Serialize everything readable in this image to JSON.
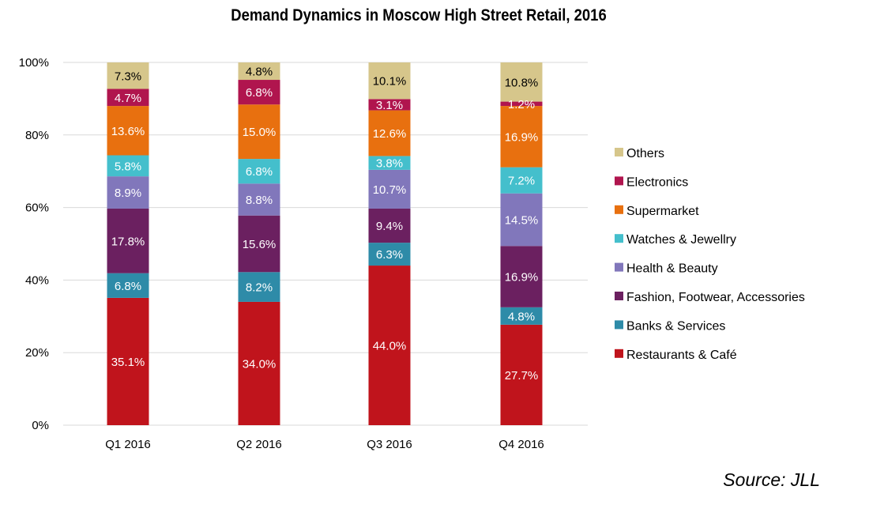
{
  "chart_data": {
    "type": "bar",
    "stacked": true,
    "title": "Demand Dynamics in Moscow High Street Retail, 2016",
    "source": "Source: JLL",
    "categories": [
      "Q1 2016",
      "Q2 2016",
      "Q3 2016",
      "Q4 2016"
    ],
    "y_ticks": [
      "0%",
      "20%",
      "40%",
      "60%",
      "80%",
      "100%"
    ],
    "ylim": [
      0,
      100
    ],
    "grid": true,
    "legend_position": "right",
    "series": [
      {
        "name": "Restaurants & Café",
        "color": "#c0141c",
        "label_color": "#ffffff",
        "values": [
          35.1,
          34.0,
          44.0,
          27.7
        ],
        "labels": [
          "35.1%",
          "34.0%",
          "44.0%",
          "27.7%"
        ]
      },
      {
        "name": "Banks & Services",
        "color": "#2e8ba8",
        "label_color": "#ffffff",
        "values": [
          6.8,
          8.2,
          6.3,
          4.8
        ],
        "labels": [
          "6.8%",
          "8.2%",
          "6.3%",
          "4.8%"
        ]
      },
      {
        "name": "Fashion, Footwear, Accessories",
        "color": "#6b2060",
        "label_color": "#ffffff",
        "values": [
          17.8,
          15.6,
          9.4,
          16.9
        ],
        "labels": [
          "17.8%",
          "15.6%",
          "9.4%",
          "16.9%"
        ]
      },
      {
        "name": "Health & Beauty",
        "color": "#8177bb",
        "label_color": "#ffffff",
        "values": [
          8.9,
          8.8,
          10.7,
          14.5
        ],
        "labels": [
          "8.9%",
          "8.8%",
          "10.7%",
          "14.5%"
        ]
      },
      {
        "name": "Watches & Jewellry",
        "color": "#44bfcc",
        "label_color": "#ffffff",
        "values": [
          5.8,
          6.8,
          3.8,
          7.2
        ],
        "labels": [
          "5.8%",
          "6.8%",
          "3.8%",
          "7.2%"
        ]
      },
      {
        "name": "Supermarket",
        "color": "#e8700f",
        "label_color": "#ffffff",
        "values": [
          13.6,
          15.0,
          12.6,
          16.9
        ],
        "labels": [
          "13.6%",
          "15.0%",
          "12.6%",
          "16.9%"
        ]
      },
      {
        "name": "Electronics",
        "color": "#b0154e",
        "label_color": "#ffffff",
        "values": [
          4.7,
          6.8,
          3.1,
          1.2
        ],
        "labels": [
          "4.7%",
          "6.8%",
          "3.1%",
          "1.2%"
        ]
      },
      {
        "name": "Others",
        "color": "#d6c68b",
        "label_color": "#000000",
        "values": [
          7.3,
          4.8,
          10.1,
          10.8
        ],
        "labels": [
          "7.3%",
          "4.8%",
          "10.1%",
          "10.8%"
        ]
      }
    ]
  }
}
